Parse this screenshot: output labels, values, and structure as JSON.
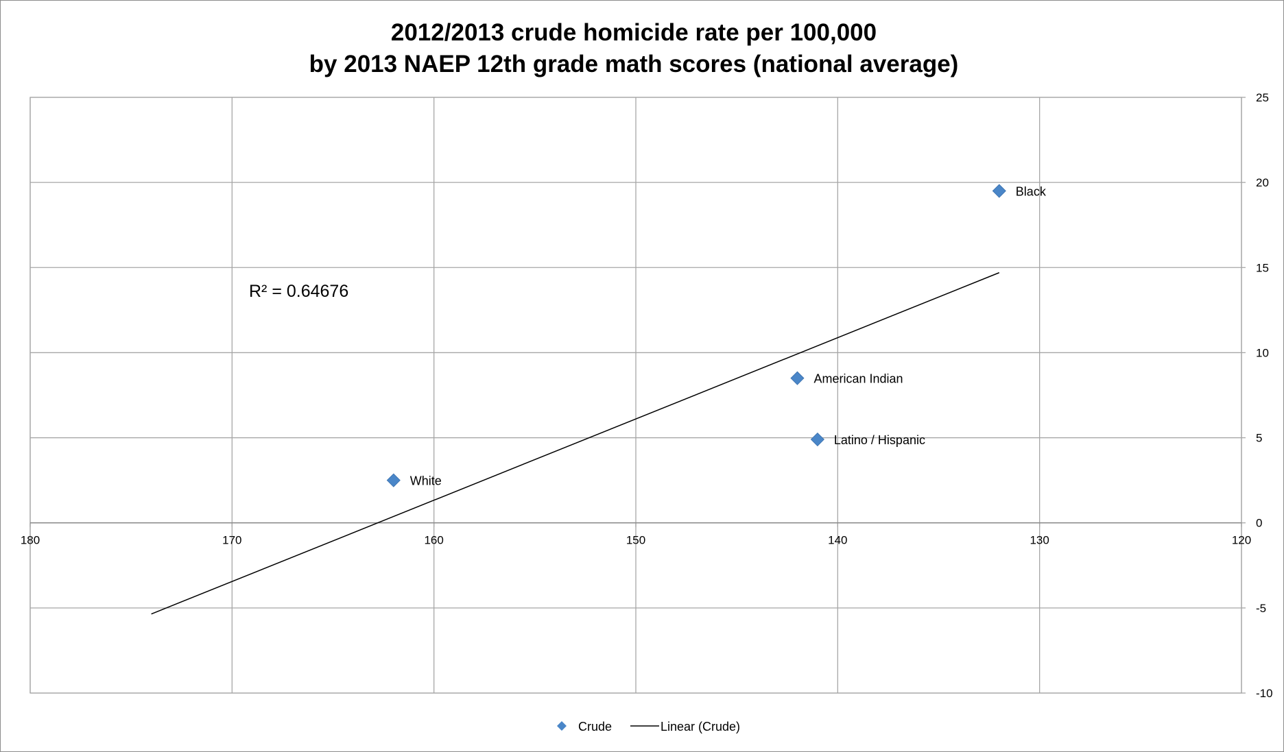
{
  "chart_data": {
    "type": "scatter",
    "title_lines": [
      "2012/2013 crude homicide rate per 100,000",
      "by 2013 NAEP 12th grade math scores (national average)"
    ],
    "xlabel": "",
    "ylabel": "",
    "x_range": [
      180,
      120
    ],
    "x_reversed": true,
    "y_range": [
      -10,
      25
    ],
    "x_ticks": [
      180,
      170,
      160,
      150,
      140,
      130,
      120
    ],
    "y_ticks": [
      25,
      20,
      15,
      10,
      5,
      0,
      -5,
      -10
    ],
    "y_axis_position": "right",
    "x_axis_crosses_at": 0,
    "grid": true,
    "series": [
      {
        "name": "Crude",
        "marker": "diamond",
        "color": "#4a86c8",
        "points": [
          {
            "label": "White",
            "x": 162,
            "y": 2.5
          },
          {
            "label": "American Indian",
            "x": 142,
            "y": 8.5
          },
          {
            "label": "Latino / Hispanic",
            "x": 141,
            "y": 4.9
          },
          {
            "label": "Black",
            "x": 132,
            "y": 19.5
          }
        ]
      }
    ],
    "trendline": {
      "name": "Linear (Crude)",
      "type": "linear",
      "color": "#000000",
      "x_start": 174,
      "x_end": 132,
      "r_squared_label": "R² = 0.64676"
    },
    "legend_position": "bottom",
    "legend": [
      "Crude",
      "Linear (Crude)"
    ]
  }
}
